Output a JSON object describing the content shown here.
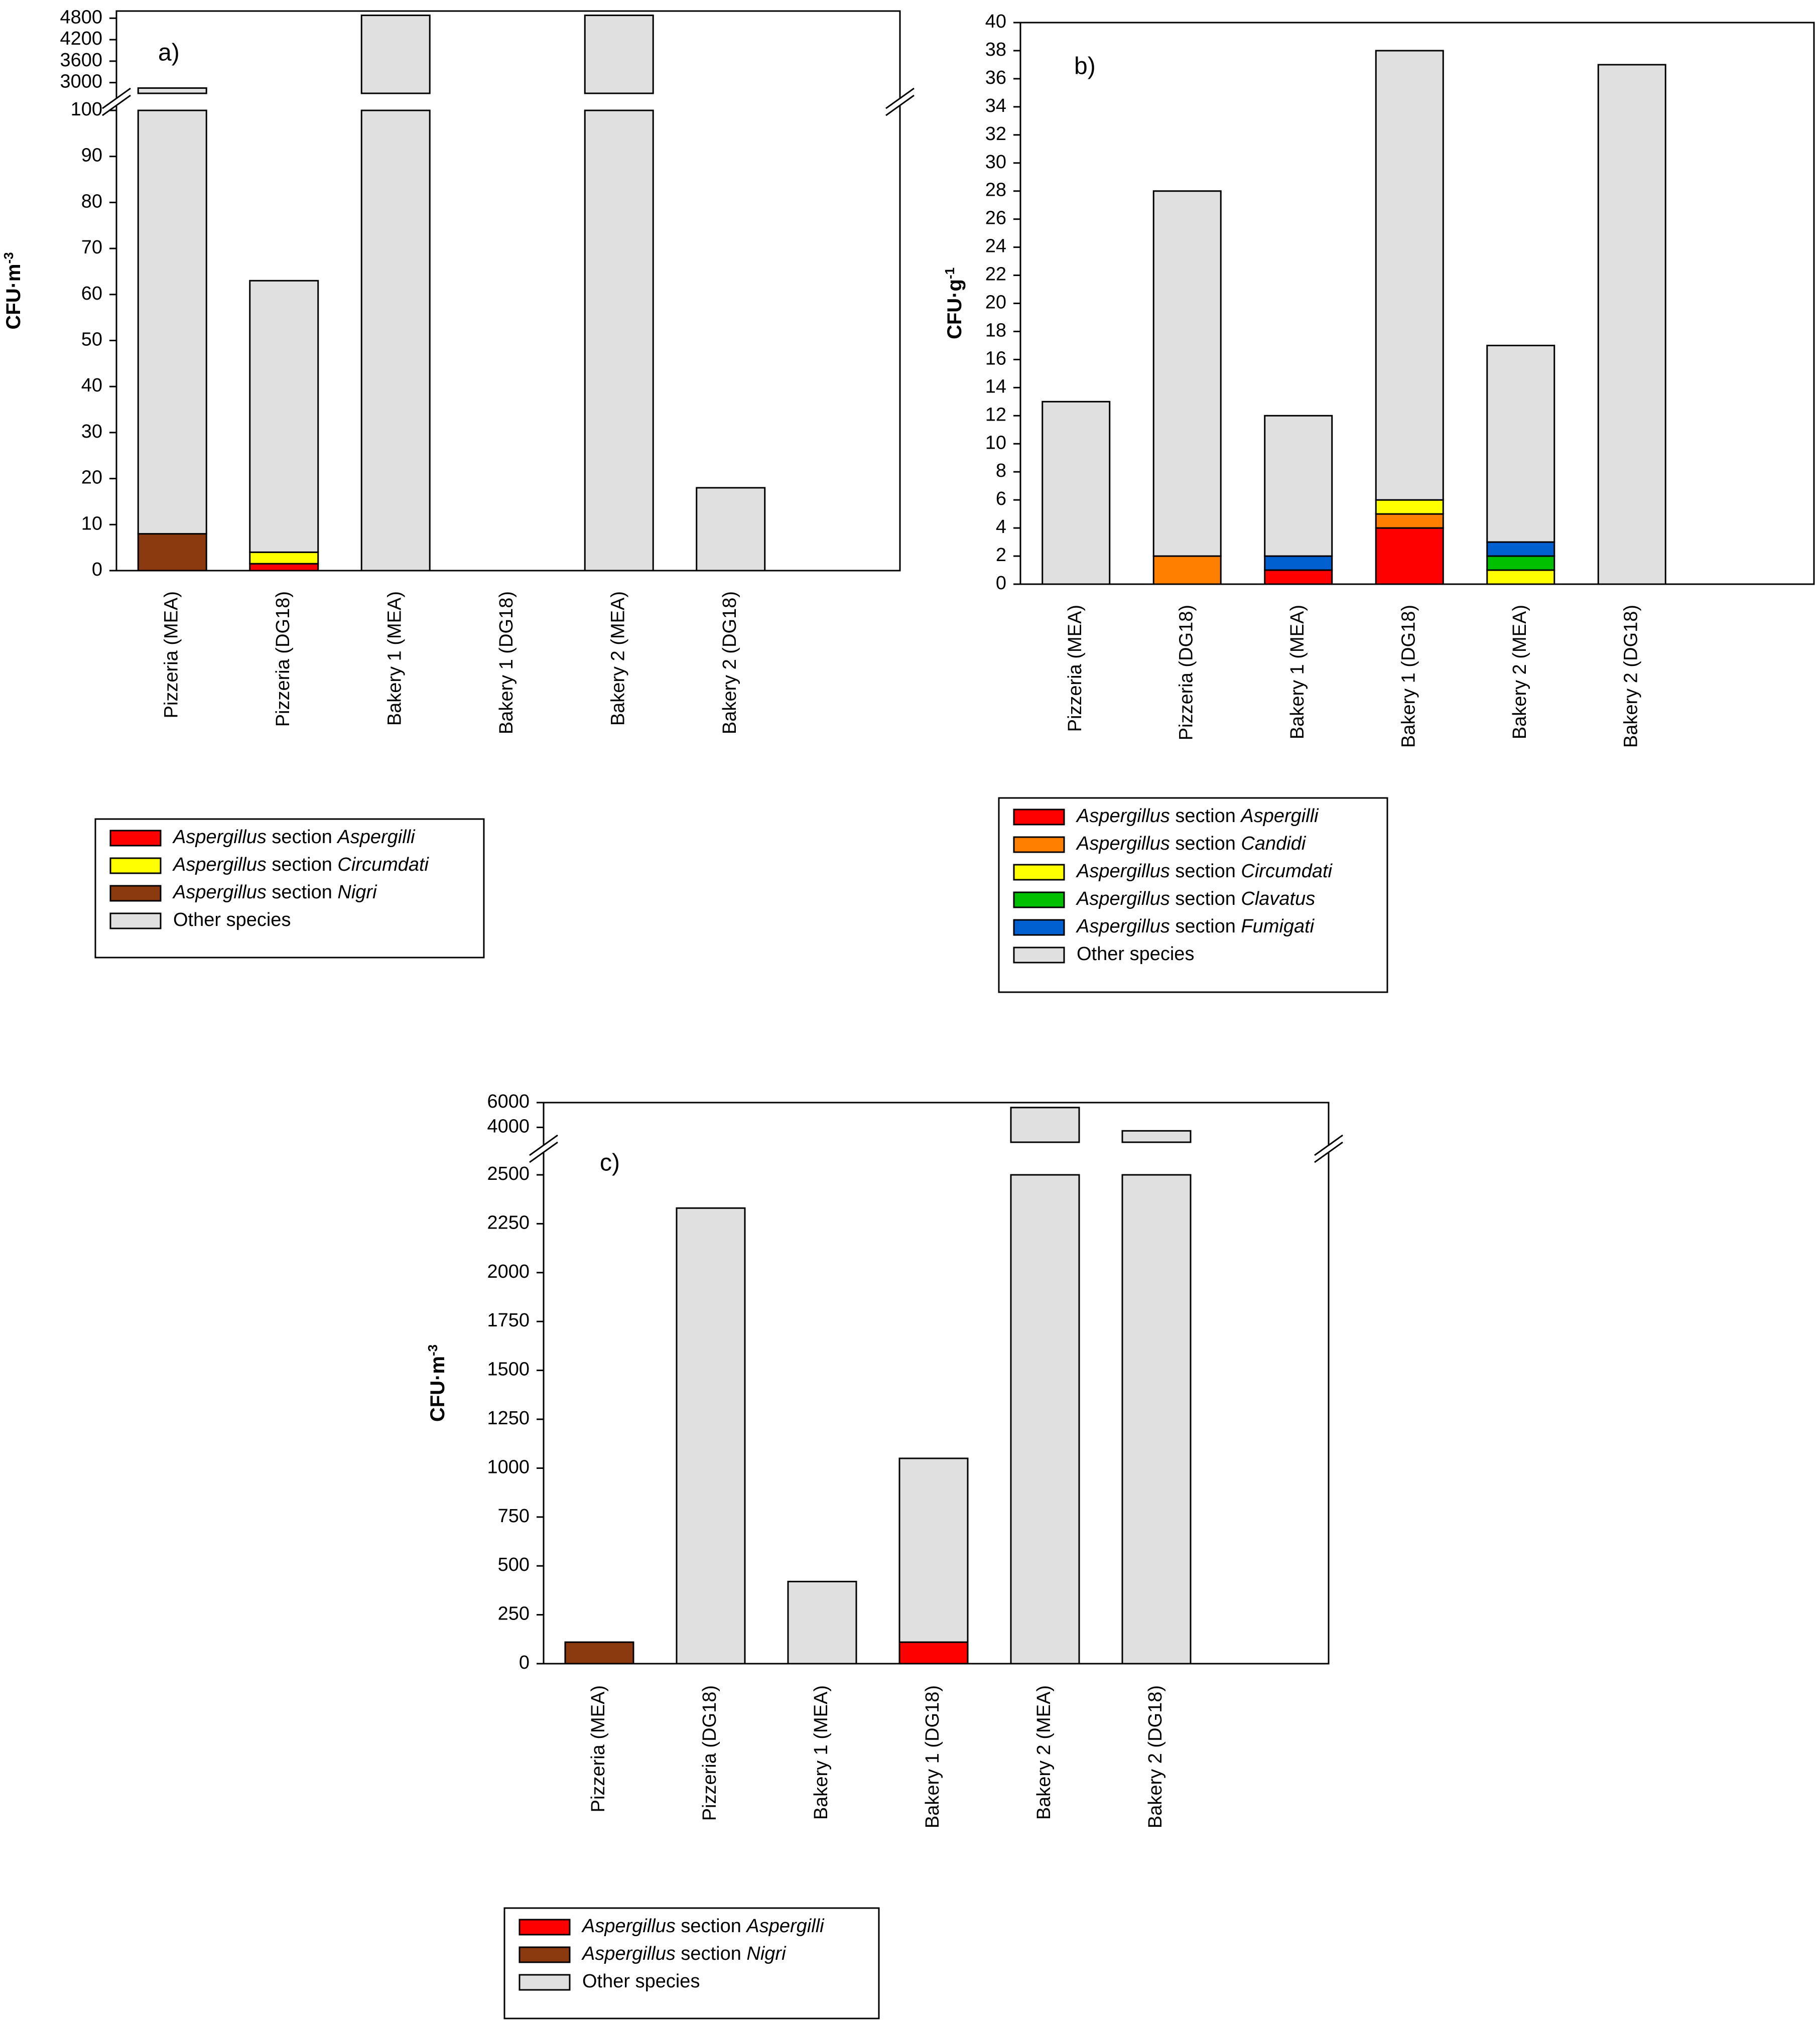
{
  "chart_data": [
    {
      "type": "bar",
      "stacked": true,
      "panel_label": "a)",
      "ylabel": "CFU·m",
      "ylabel_sup": "-3",
      "categories": [
        "Pizzeria (MEA)",
        "Pizzeria (DG18)",
        "Bakery 1 (MEA)",
        "Bakery 1 (DG18)",
        "Bakery 2 (MEA)",
        "Bakery 2 (DG18)"
      ],
      "axis_break": true,
      "lower_range": [
        0,
        100
      ],
      "upper_range": [
        2700,
        5000
      ],
      "lower_ticks": [
        "0",
        "10",
        "20",
        "30",
        "40",
        "50",
        "60",
        "70",
        "80",
        "90",
        "100"
      ],
      "upper_ticks": [
        "3000",
        "3600",
        "4200",
        "4800"
      ],
      "series": [
        {
          "name": "Aspergillus section Aspergilli",
          "genus": "Aspergillus",
          "mid": " section ",
          "section": "Aspergilli",
          "color": "#FF0000",
          "values": [
            0,
            1.5,
            0,
            0,
            0,
            0
          ]
        },
        {
          "name": "Aspergillus section Circumdati",
          "genus": "Aspergillus",
          "mid": " section ",
          "section": "Circumdati",
          "color": "#FFFF00",
          "values": [
            0,
            2.5,
            0,
            0,
            0,
            0
          ]
        },
        {
          "name": "Aspergillus section Nigri",
          "genus": "Aspergillus",
          "mid": " section ",
          "section": "Nigri",
          "color": "#8B3A0F",
          "values": [
            8,
            0,
            0,
            0,
            0,
            0
          ]
        },
        {
          "name": "Other species",
          "plain": "Other species",
          "color": "#E0E0E0",
          "values": [
            2840,
            59,
            4880,
            0,
            4880,
            18
          ]
        }
      ]
    },
    {
      "type": "bar",
      "stacked": true,
      "panel_label": "b)",
      "ylabel": "CFU·g",
      "ylabel_sup": "-1",
      "categories": [
        "Pizzeria (MEA)",
        "Pizzeria (DG18)",
        "Bakery 1 (MEA)",
        "Bakery 1 (DG18)",
        "Bakery 2 (MEA)",
        "Bakery 2 (DG18)"
      ],
      "ylim": [
        0,
        40
      ],
      "ticks": [
        "0",
        "2",
        "4",
        "6",
        "8",
        "10",
        "12",
        "14",
        "16",
        "18",
        "20",
        "22",
        "24",
        "26",
        "28",
        "30",
        "32",
        "34",
        "36",
        "38",
        "40"
      ],
      "series": [
        {
          "name": "Aspergillus section Aspergilli",
          "genus": "Aspergillus",
          "mid": " section ",
          "section": "Aspergilli",
          "color": "#FF0000",
          "values": [
            0,
            0,
            1,
            4,
            0,
            0
          ]
        },
        {
          "name": "Aspergillus section Candidi",
          "genus": "Aspergillus",
          "mid": " section ",
          "section": "Candidi",
          "color": "#FF8000",
          "values": [
            0,
            2,
            0,
            1,
            0,
            0
          ]
        },
        {
          "name": "Aspergillus section Circumdati",
          "genus": "Aspergillus",
          "mid": " section ",
          "section": "Circumdati",
          "color": "#FFFF00",
          "values": [
            0,
            0,
            0,
            1,
            1,
            0
          ]
        },
        {
          "name": "Aspergillus section Clavatus",
          "genus": "Aspergillus",
          "mid": " section ",
          "section": "Clavatus",
          "color": "#00C000",
          "values": [
            0,
            0,
            0,
            0,
            1,
            0
          ]
        },
        {
          "name": "Aspergillus section Fumigati",
          "genus": "Aspergillus",
          "mid": " section ",
          "section": "Fumigati",
          "color": "#0060D0",
          "values": [
            0,
            0,
            1,
            0,
            1,
            0
          ]
        },
        {
          "name": "Other species",
          "plain": "Other species",
          "color": "#E0E0E0",
          "values": [
            13,
            26,
            10,
            32,
            14,
            37
          ]
        }
      ]
    },
    {
      "type": "bar",
      "stacked": true,
      "panel_label": "c)",
      "ylabel": "CFU·m",
      "ylabel_sup": "-3",
      "categories": [
        "Pizzeria (MEA)",
        "Pizzeria (DG18)",
        "Bakery 1 (MEA)",
        "Bakery 1 (DG18)",
        "Bakery 2 (MEA)",
        "Bakery 2 (DG18)"
      ],
      "axis_break": true,
      "lower_range": [
        0,
        2500
      ],
      "upper_range": [
        2800,
        6000
      ],
      "lower_ticks": [
        "0",
        "250",
        "500",
        "750",
        "1000",
        "1250",
        "1500",
        "1750",
        "2000",
        "2250",
        "2500"
      ],
      "upper_ticks": [
        "4000",
        "6000"
      ],
      "series": [
        {
          "name": "Aspergillus section Aspergilli",
          "genus": "Aspergillus",
          "mid": " section ",
          "section": "Aspergilli",
          "color": "#FF0000",
          "values": [
            0,
            0,
            0,
            110,
            0,
            0
          ]
        },
        {
          "name": "Aspergillus section Nigri",
          "genus": "Aspergillus",
          "mid": " section ",
          "section": "Nigri",
          "color": "#8B3A0F",
          "values": [
            110,
            0,
            0,
            0,
            0,
            0
          ]
        },
        {
          "name": "Other species",
          "plain": "Other species",
          "color": "#E0E0E0",
          "values": [
            0,
            2330,
            420,
            940,
            5600,
            3720
          ]
        }
      ]
    }
  ]
}
